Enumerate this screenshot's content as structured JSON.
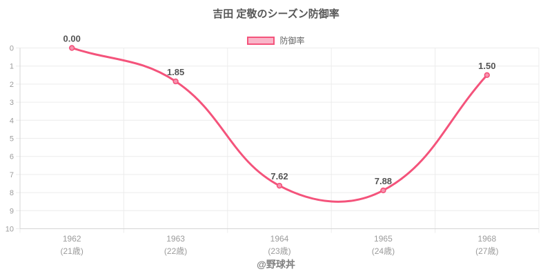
{
  "page": {
    "title": "吉田 定敬のシーズン防御率",
    "footer": "@野球丼"
  },
  "legend": {
    "label": "防御率"
  },
  "colors": {
    "accent": "#f4537b",
    "legend_fill": "#f9b6c9",
    "point_fill": "#f794b0",
    "grid": "#ececec",
    "axis_border": "#d4d4d4",
    "tick_label": "#9b9b9b",
    "title_text": "#565656",
    "data_label": "#545454",
    "footer_text": "#808080"
  },
  "chart_data": {
    "type": "line",
    "title": "吉田 定敬のシーズン防御率",
    "categories": [
      "1962",
      "1963",
      "1964",
      "1965",
      "1968"
    ],
    "category_sublabels": [
      "(21歳)",
      "(22歳)",
      "(23歳)",
      "(24歳)",
      "(27歳)"
    ],
    "series": [
      {
        "name": "防御率",
        "values": [
          0.0,
          1.85,
          7.62,
          7.88,
          1.5
        ]
      }
    ],
    "point_labels": [
      "0.00",
      "1.85",
      "7.62",
      "7.88",
      "1.50"
    ],
    "xlabel": "",
    "ylabel": "",
    "ylim": [
      0,
      10
    ],
    "yticks": [
      0,
      1,
      2,
      3,
      4,
      5,
      6,
      7,
      8,
      9,
      10
    ],
    "y_inverted": true,
    "grid": true,
    "legend_position": "top",
    "line_tension": 0.4
  }
}
